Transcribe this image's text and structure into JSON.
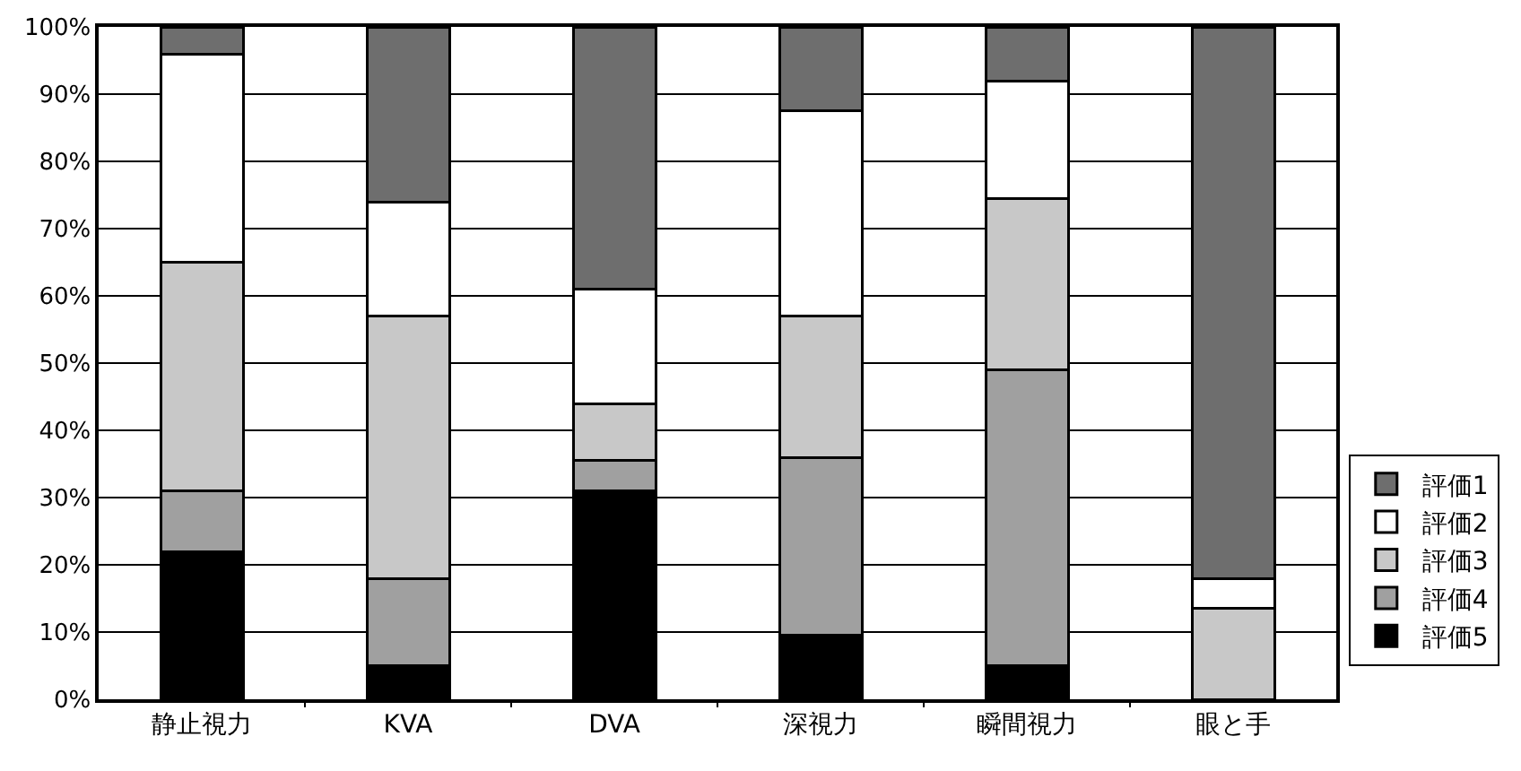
{
  "chart_data": {
    "type": "bar",
    "stacked": true,
    "categories": [
      "静止視力",
      "KVA",
      "DVA",
      "深視力",
      "瞬間視力",
      "眼と手"
    ],
    "series": [
      {
        "name": "評価5",
        "color": "#000000",
        "values": [
          22,
          5,
          31,
          9.5,
          5,
          0
        ]
      },
      {
        "name": "評価4",
        "color": "#a0a0a0",
        "values": [
          9,
          13,
          4.5,
          26.5,
          44,
          0
        ]
      },
      {
        "name": "評価3",
        "color": "#c8c8c8",
        "values": [
          34,
          39,
          8.5,
          21,
          25.5,
          13.5
        ]
      },
      {
        "name": "評価2",
        "color": "#ffffff",
        "values": [
          31,
          17,
          17,
          30.5,
          17.5,
          4.5
        ]
      },
      {
        "name": "評価1",
        "color": "#6e6e6e",
        "values": [
          4,
          26,
          39,
          12.5,
          8,
          82
        ]
      }
    ],
    "ylim": [
      0,
      100
    ],
    "yticks": [
      {
        "value": 0,
        "label": "0%"
      },
      {
        "value": 10,
        "label": "10%"
      },
      {
        "value": 20,
        "label": "20%"
      },
      {
        "value": 30,
        "label": "30%"
      },
      {
        "value": 40,
        "label": "40%"
      },
      {
        "value": 50,
        "label": "50%"
      },
      {
        "value": 60,
        "label": "60%"
      },
      {
        "value": 70,
        "label": "70%"
      },
      {
        "value": 80,
        "label": "80%"
      },
      {
        "value": 90,
        "label": "90%"
      },
      {
        "value": 100,
        "label": "100%"
      }
    ],
    "grid": true,
    "legend": "right"
  }
}
